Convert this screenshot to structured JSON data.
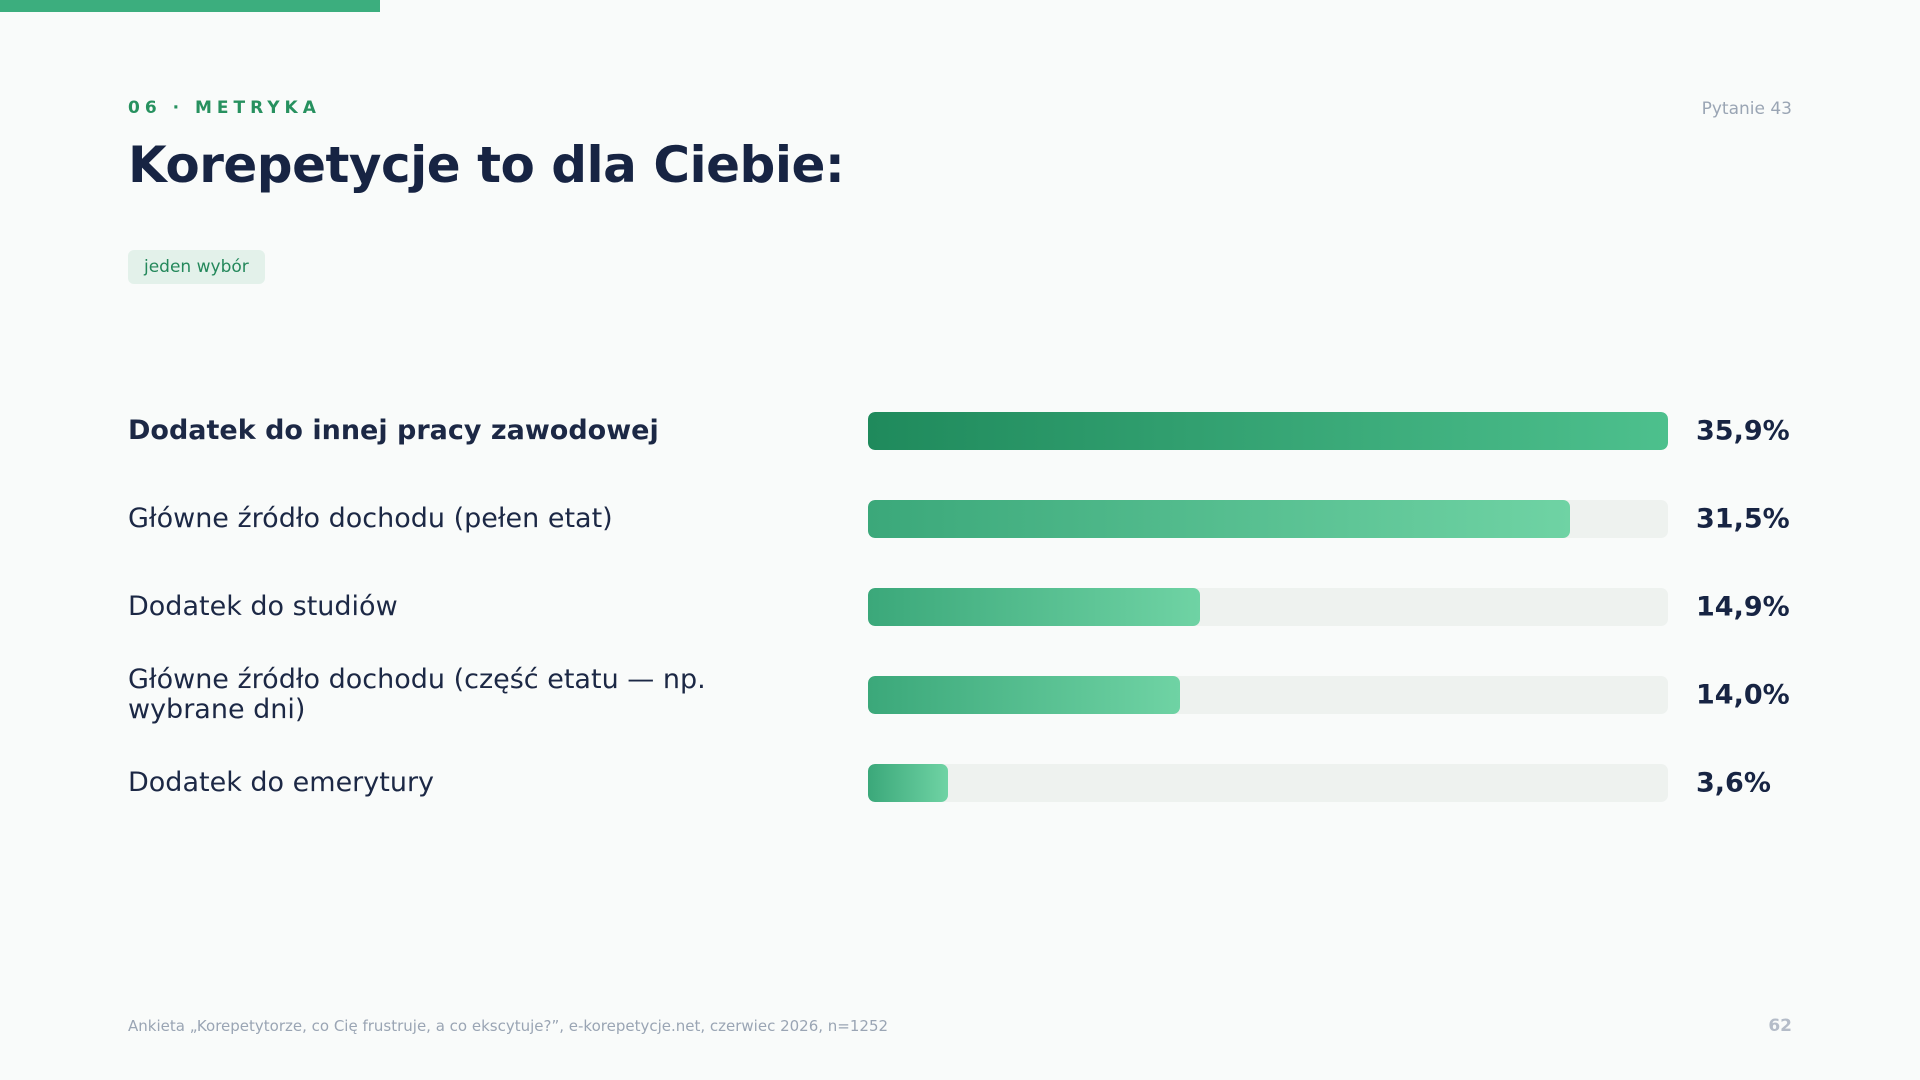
{
  "header": {
    "section_label": "06 · METRYKA",
    "question_number": "Pytanie 43",
    "title": "Korepetycje to dla Ciebie:",
    "tag": "jeden wybór"
  },
  "colors": {
    "accent": "#3cae7e",
    "bar_top_start": "#1f8a5c",
    "bar_top_end": "#4dc08d",
    "bar_start": "#3ba87a",
    "bar_end": "#6fd3a4",
    "track": "#eef2ef"
  },
  "chart_data": {
    "type": "bar",
    "orientation": "horizontal",
    "categories": [
      "Dodatek do innej pracy zawodowej",
      "Główne źródło dochodu (pełen etat)",
      "Dodatek do studiów",
      "Główne źródło dochodu (część etatu — np. wybrane dni)",
      "Dodatek do emerytury"
    ],
    "values": [
      35.9,
      31.5,
      14.9,
      14.0,
      3.6
    ],
    "value_labels": [
      "35,9%",
      "31,5%",
      "14,9%",
      "14,0%",
      "3,6%"
    ],
    "xlim": [
      0,
      35.9
    ],
    "title": "Korepetycje to dla Ciebie:",
    "grid": false,
    "legend": "none"
  },
  "footer": {
    "source": "Ankieta „Korepetytorze, co Cię frustruje, a co ekscytuje?”, e-korepetycje.net, czerwiec 2026, n=1252",
    "page_number": "62"
  }
}
